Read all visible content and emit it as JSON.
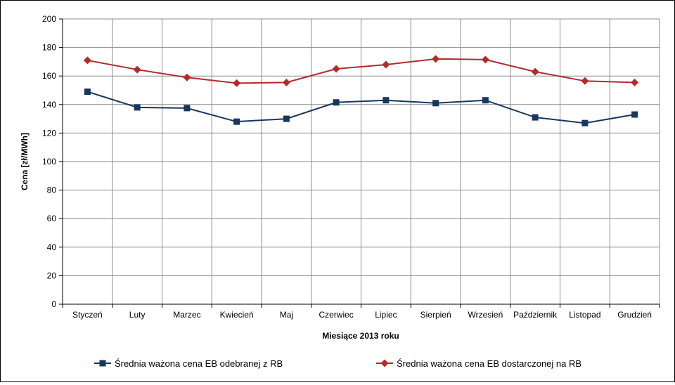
{
  "chart_data": {
    "type": "line",
    "categories": [
      "Styczeń",
      "Luty",
      "Marzec",
      "Kwiecień",
      "Maj",
      "Czerwiec",
      "Lipiec",
      "Sierpień",
      "Wrzesień",
      "Październik",
      "Listopad",
      "Grudzień"
    ],
    "series": [
      {
        "name": "Średnia ważona cena EB odebranej z RB",
        "color": "#17375E",
        "marker": "square",
        "values": [
          149,
          138,
          137.5,
          128,
          130,
          141.5,
          143,
          141,
          143,
          131,
          127,
          133
        ]
      },
      {
        "name": "Średnia ważona cena EB dostarczonej na RB",
        "color": "#B22B2B",
        "marker": "diamond",
        "values": [
          171,
          164.5,
          159,
          155,
          155.5,
          165,
          168,
          172,
          171.5,
          163,
          156.5,
          155.5
        ]
      }
    ],
    "xlabel": "Miesiące 2013  roku",
    "ylabel": "Cena [zł/MWh]",
    "ylim": [
      0,
      200
    ],
    "yticks": [
      0,
      20,
      40,
      60,
      80,
      100,
      120,
      140,
      160,
      180,
      200
    ],
    "grid": true,
    "legend": "bottom"
  }
}
